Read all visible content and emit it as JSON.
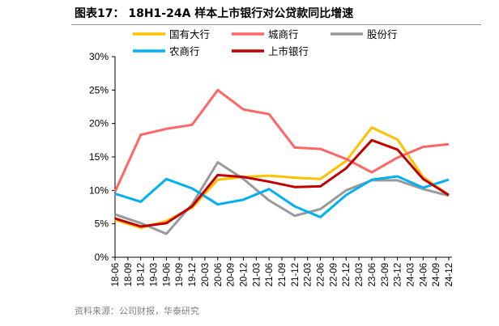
{
  "title": "图表17： 18H1-24A 样本上市银行对公贷款同比增速",
  "source": "资料来源：公司财报，华泰研究",
  "chart_data": {
    "type": "line",
    "categories": [
      "18-06",
      "18-09",
      "18-12",
      "19-03",
      "19-06",
      "19-09",
      "19-12",
      "20-03",
      "20-06",
      "20-09",
      "20-12",
      "21-03",
      "21-06",
      "21-09",
      "21-12",
      "22-03",
      "22-06",
      "22-09",
      "22-12",
      "23-03",
      "23-06",
      "23-09",
      "23-12",
      "24-03",
      "24-06",
      "24-09",
      "24-12"
    ],
    "x": [
      "18-06",
      "18-12",
      "19-06",
      "19-12",
      "20-06",
      "20-12",
      "21-06",
      "21-12",
      "22-06",
      "22-12",
      "23-06",
      "23-12",
      "24-06",
      "24-12"
    ],
    "ylim": [
      0,
      30
    ],
    "yticks": [
      "0%",
      "5%",
      "10%",
      "15%",
      "20%",
      "25%",
      "30%"
    ],
    "grid": false,
    "legend": "top",
    "series": [
      {
        "name": "国有大行",
        "color": "#FFC000",
        "values": [
          5.6,
          4.4,
          5.4,
          7.4,
          11.6,
          12.0,
          12.2,
          11.9,
          11.7,
          14.4,
          19.4,
          17.6,
          12.0,
          9.3
        ]
      },
      {
        "name": "城商行",
        "color": "#FF6666",
        "values": [
          9.8,
          18.3,
          19.2,
          19.8,
          25.0,
          22.1,
          21.4,
          16.4,
          16.2,
          14.7,
          12.7,
          14.9,
          16.5,
          16.9
        ]
      },
      {
        "name": "股份行",
        "color": "#999999",
        "values": [
          6.4,
          5.1,
          3.5,
          7.9,
          14.2,
          11.7,
          8.5,
          6.2,
          7.2,
          10.0,
          11.5,
          11.5,
          10.2,
          9.2
        ]
      },
      {
        "name": "农商行",
        "color": "#00B0F0",
        "values": [
          9.5,
          8.3,
          11.7,
          10.3,
          7.9,
          8.6,
          10.2,
          7.6,
          6.0,
          9.3,
          11.6,
          12.1,
          10.4,
          11.6
        ]
      },
      {
        "name": "上市银行",
        "color": "#C00000",
        "values": [
          5.8,
          4.6,
          5.1,
          7.6,
          12.3,
          12.0,
          11.3,
          10.5,
          10.6,
          13.3,
          17.5,
          16.1,
          11.7,
          9.3
        ]
      }
    ]
  }
}
